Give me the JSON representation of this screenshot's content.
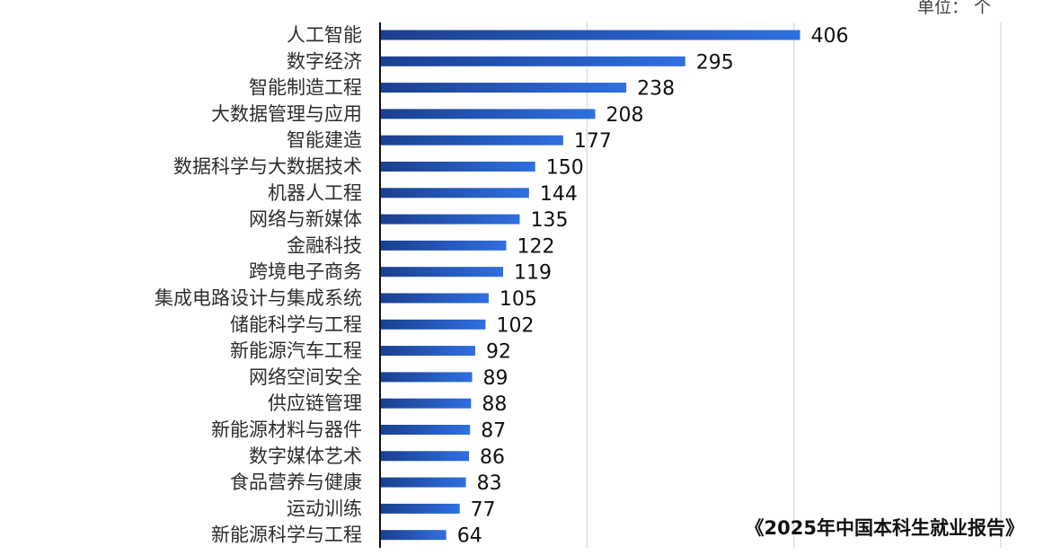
{
  "chart_data": {
    "type": "bar",
    "orientation": "horizontal",
    "unit_label": "单位： 个",
    "source_note": "《2025年中国本科生就业报告》",
    "categories": [
      "人工智能",
      "数字经济",
      "智能制造工程",
      "大数据管理与应用",
      "智能建造",
      "数据科学与大数据技术",
      "机器人工程",
      "网络与新媒体",
      "金融科技",
      "跨境电子商务",
      "集成电路设计与集成系统",
      "储能科学与工程",
      "新能源汽车工程",
      "网络空间安全",
      "供应链管理",
      "新能源材料与器件",
      "数字媒体艺术",
      "食品营养与健康",
      "运动训练",
      "新能源科学与工程"
    ],
    "values": [
      406,
      295,
      238,
      208,
      177,
      150,
      144,
      135,
      122,
      119,
      105,
      102,
      92,
      89,
      88,
      87,
      86,
      83,
      77,
      64
    ],
    "xlim": [
      0,
      600
    ],
    "grid": "vertical",
    "colors": {
      "bar_start": "#1a3f8f",
      "bar_end": "#2f6fe0",
      "grid": "#cfe0ef",
      "axis": "#111111"
    }
  }
}
